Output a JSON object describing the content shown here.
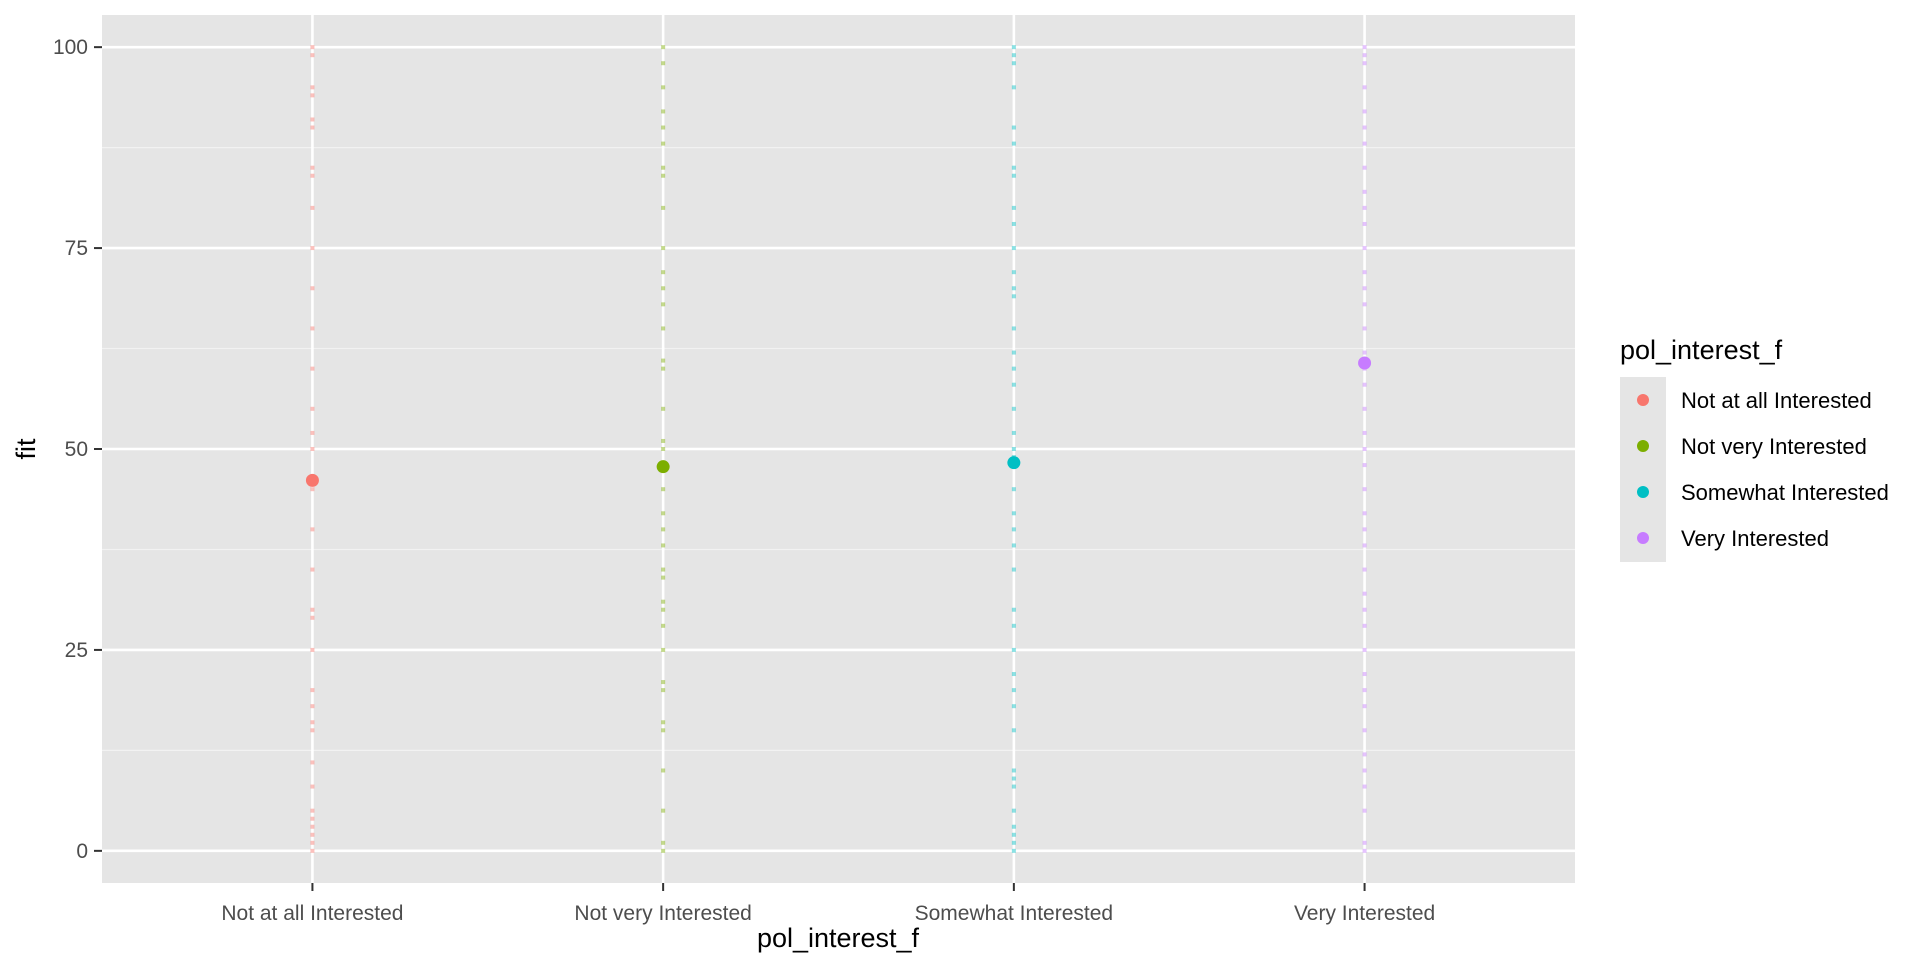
{
  "chart_data": {
    "type": "scatter",
    "xlabel": "pol_interest_f",
    "ylabel": "fit",
    "categories": [
      "Not at all Interested",
      "Not very Interested",
      "Somewhat Interested",
      "Very Interested"
    ],
    "ylim": [
      -4,
      104
    ],
    "yticks": [
      0,
      25,
      50,
      75,
      100
    ],
    "grid": true,
    "legend": {
      "title": "pol_interest_f",
      "position": "right",
      "entries": [
        "Not at all Interested",
        "Not very Interested",
        "Somewhat Interested",
        "Very Interested"
      ]
    },
    "colors": [
      "#F8766D",
      "#7CAE00",
      "#00BFC4",
      "#C77CFF"
    ],
    "series": [
      {
        "category": "Not at all Interested",
        "mean": 46.1,
        "raw_points": [
          0,
          1,
          2,
          3,
          4,
          5,
          8,
          11,
          15,
          16,
          18,
          20,
          25,
          29,
          30,
          35,
          40,
          45,
          50,
          52,
          55,
          60,
          65,
          70,
          75,
          80,
          84,
          85,
          90,
          91,
          94,
          95,
          99,
          100
        ]
      },
      {
        "category": "Not very Interested",
        "mean": 47.8,
        "raw_points": [
          0,
          1,
          5,
          10,
          15,
          16,
          20,
          21,
          25,
          28,
          30,
          31,
          34,
          35,
          38,
          40,
          42,
          45,
          50,
          51,
          55,
          60,
          61,
          65,
          68,
          70,
          72,
          75,
          80,
          84,
          85,
          88,
          90,
          92,
          95,
          98,
          100
        ]
      },
      {
        "category": "Somewhat Interested",
        "mean": 48.3,
        "raw_points": [
          0,
          1,
          2,
          3,
          5,
          8,
          9,
          10,
          15,
          18,
          20,
          22,
          25,
          28,
          30,
          35,
          38,
          40,
          42,
          45,
          49,
          50,
          52,
          55,
          58,
          60,
          62,
          65,
          69,
          70,
          72,
          75,
          78,
          80,
          84,
          85,
          88,
          90,
          95,
          98,
          99,
          100
        ]
      },
      {
        "category": "Very Interested",
        "mean": 60.7,
        "raw_points": [
          0,
          1,
          5,
          8,
          10,
          12,
          15,
          18,
          20,
          22,
          25,
          28,
          30,
          32,
          35,
          38,
          40,
          42,
          45,
          48,
          50,
          52,
          55,
          58,
          60,
          62,
          65,
          68,
          70,
          72,
          75,
          78,
          80,
          82,
          85,
          88,
          90,
          92,
          95,
          98,
          99,
          100
        ]
      }
    ]
  }
}
